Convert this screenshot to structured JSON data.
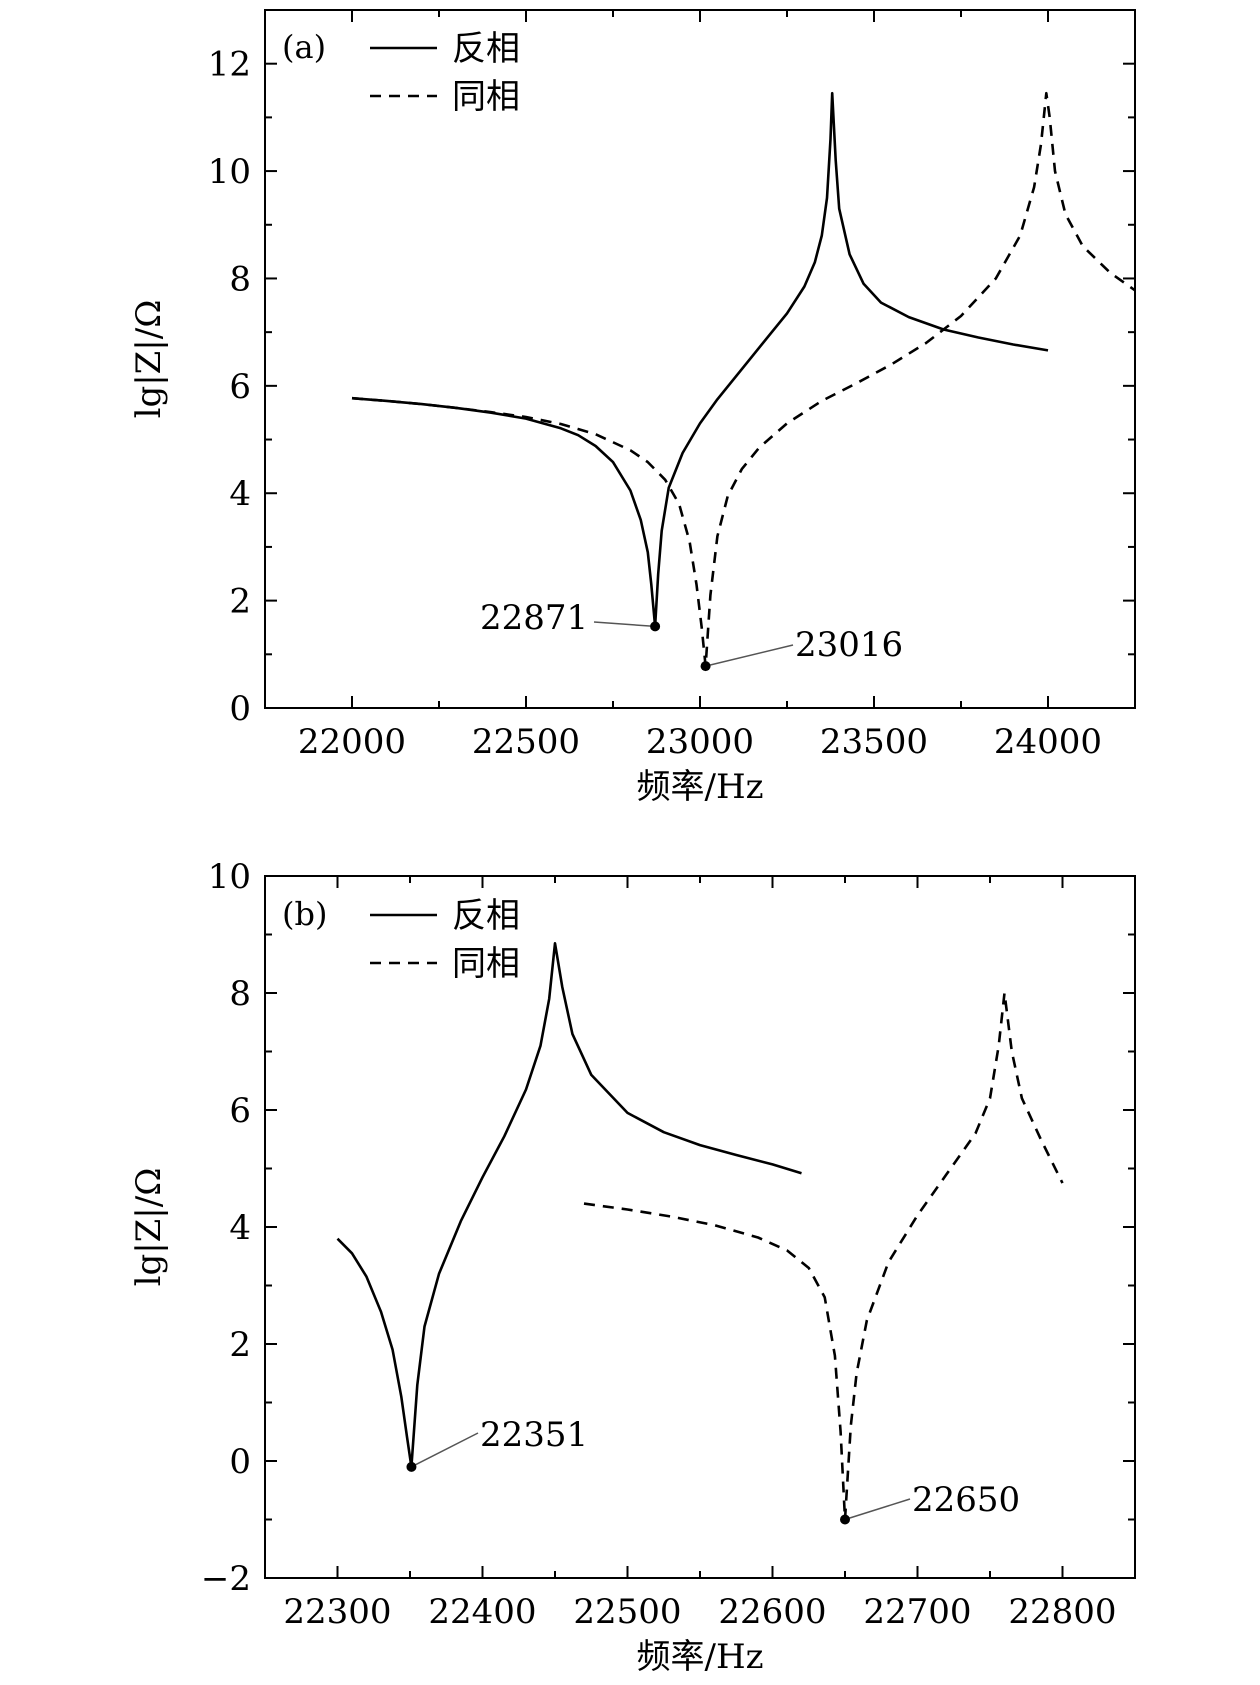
{
  "chart_data": [
    {
      "type": "line",
      "panel_label": "(a)",
      "xlabel": "频率/Hz",
      "ylabel": "lg|Z|/Ω",
      "xlim": [
        21750,
        24250
      ],
      "ylim": [
        0,
        13
      ],
      "xticks": [
        22000,
        22500,
        23000,
        23500,
        24000
      ],
      "xtick_labels": [
        "22000",
        "22500",
        "23000",
        "23500",
        "24000"
      ],
      "yticks": [
        0,
        2,
        4,
        6,
        8,
        10,
        12
      ],
      "ytick_labels": [
        "0",
        "2",
        "4",
        "6",
        "8",
        "10",
        "12"
      ],
      "legend_position": "top-left",
      "series": [
        {
          "name": "反相",
          "style": "solid",
          "x": [
            22000,
            22100,
            22200,
            22300,
            22400,
            22500,
            22600,
            22650,
            22700,
            22750,
            22800,
            22830,
            22850,
            22860,
            22871,
            22880,
            22890,
            22910,
            22950,
            23000,
            23050,
            23100,
            23150,
            23200,
            23250,
            23300,
            23330,
            23350,
            23365,
            23375,
            23380,
            23390,
            23400,
            23430,
            23470,
            23520,
            23600,
            23700,
            23800,
            23900,
            24000
          ],
          "y": [
            5.77,
            5.72,
            5.66,
            5.59,
            5.5,
            5.39,
            5.21,
            5.08,
            4.88,
            4.58,
            4.05,
            3.5,
            2.9,
            2.3,
            1.52,
            2.5,
            3.3,
            4.1,
            4.75,
            5.3,
            5.75,
            6.15,
            6.55,
            6.95,
            7.35,
            7.85,
            8.3,
            8.8,
            9.5,
            10.6,
            11.45,
            10.2,
            9.3,
            8.45,
            7.9,
            7.55,
            7.28,
            7.05,
            6.9,
            6.77,
            6.66
          ]
        },
        {
          "name": "同相",
          "style": "dashed",
          "x": [
            22000,
            22100,
            22200,
            22300,
            22400,
            22500,
            22600,
            22700,
            22800,
            22850,
            22900,
            22940,
            22970,
            22990,
            23005,
            23016,
            23030,
            23050,
            23080,
            23120,
            23170,
            23250,
            23350,
            23450,
            23550,
            23650,
            23750,
            23850,
            23920,
            23960,
            23980,
            23995,
            24005,
            24020,
            24050,
            24100,
            24180,
            24250
          ],
          "y": [
            5.77,
            5.72,
            5.66,
            5.59,
            5.51,
            5.42,
            5.29,
            5.1,
            4.8,
            4.58,
            4.25,
            3.8,
            3.1,
            2.3,
            1.5,
            0.78,
            2.1,
            3.2,
            3.95,
            4.45,
            4.85,
            5.3,
            5.72,
            6.05,
            6.4,
            6.8,
            7.3,
            8.0,
            8.8,
            9.7,
            10.5,
            11.45,
            11.0,
            10.0,
            9.2,
            8.6,
            8.1,
            7.78
          ]
        }
      ],
      "annotations": [
        {
          "text": "22871",
          "x": 22871,
          "y": 1.52
        },
        {
          "text": "23016",
          "x": 23016,
          "y": 0.78
        }
      ]
    },
    {
      "type": "line",
      "panel_label": "(b)",
      "xlabel": "频率/Hz",
      "ylabel": "lg|Z|/Ω",
      "xlim": [
        22250,
        22850
      ],
      "ylim": [
        -2,
        10
      ],
      "xticks": [
        22300,
        22400,
        22500,
        22600,
        22700,
        22800
      ],
      "xtick_labels": [
        "22300",
        "22400",
        "22500",
        "22600",
        "22700",
        "22800"
      ],
      "yticks": [
        -2,
        0,
        2,
        4,
        6,
        8,
        10
      ],
      "ytick_labels": [
        "−2",
        "0",
        "2",
        "4",
        "6",
        "8",
        "10"
      ],
      "legend_position": "top-left",
      "series": [
        {
          "name": "反相",
          "style": "solid",
          "x": [
            22300,
            22310,
            22320,
            22330,
            22338,
            22344,
            22348,
            22351,
            22355,
            22360,
            22370,
            22385,
            22400,
            22415,
            22430,
            22440,
            22446,
            22450,
            22455,
            22462,
            22475,
            22500,
            22525,
            22550,
            22575,
            22600,
            22620
          ],
          "y": [
            3.8,
            3.55,
            3.15,
            2.55,
            1.9,
            1.1,
            0.4,
            -0.1,
            1.3,
            2.3,
            3.2,
            4.1,
            4.85,
            5.55,
            6.35,
            7.1,
            7.9,
            8.85,
            8.1,
            7.3,
            6.6,
            5.95,
            5.62,
            5.4,
            5.23,
            5.07,
            4.92
          ]
        },
        {
          "name": "同相",
          "style": "dashed",
          "x": [
            22470,
            22500,
            22530,
            22560,
            22590,
            22610,
            22625,
            22636,
            22643,
            22647,
            22650,
            22654,
            22658,
            22665,
            22680,
            22700,
            22720,
            22740,
            22750,
            22756,
            22760,
            22765,
            22772,
            22785,
            22800
          ],
          "y": [
            4.4,
            4.3,
            4.18,
            4.03,
            3.82,
            3.6,
            3.3,
            2.8,
            1.8,
            0.5,
            -1.0,
            0.6,
            1.5,
            2.4,
            3.4,
            4.2,
            4.9,
            5.6,
            6.2,
            7.1,
            8.0,
            7.0,
            6.2,
            5.5,
            4.75
          ]
        }
      ],
      "annotations": [
        {
          "text": "22351",
          "x": 22351,
          "y": -0.1
        },
        {
          "text": "22650",
          "x": 22650,
          "y": -1.0
        }
      ]
    }
  ]
}
